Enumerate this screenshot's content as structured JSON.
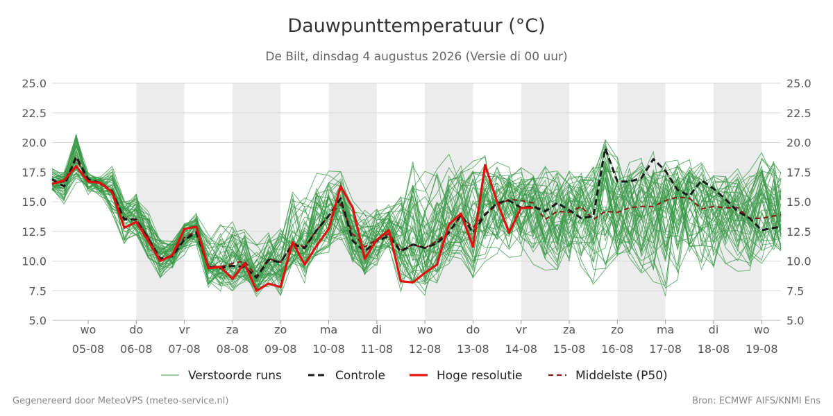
{
  "title": "Dauwpunttemperatuur (°C)",
  "subtitle": "De Bilt, dinsdag  4 augustus 2026 (Versie di 00 uur)",
  "footer": {
    "left": "Gegenereerd door MeteoVPS (meteo-service.nl)",
    "right": "Bron: ECMWF AIFS/KNMI Ens"
  },
  "chart_data": {
    "type": "line",
    "ylim": [
      5.0,
      25.0
    ],
    "yticks": [
      "5.0",
      "7.5",
      "10.0",
      "12.5",
      "15.0",
      "17.5",
      "20.0",
      "22.5",
      "25.0"
    ],
    "grid": true,
    "legend_position": "bottom",
    "x_range_days": [
      -0.75,
      14.4
    ],
    "x_ticks": [
      {
        "day": "wo",
        "date": "05-08"
      },
      {
        "day": "do",
        "date": "06-08"
      },
      {
        "day": "vr",
        "date": "07-08"
      },
      {
        "day": "za",
        "date": "08-08"
      },
      {
        "day": "zo",
        "date": "09-08"
      },
      {
        "day": "ma",
        "date": "10-08"
      },
      {
        "day": "di",
        "date": "11-08"
      },
      {
        "day": "wo",
        "date": "12-08"
      },
      {
        "day": "do",
        "date": "13-08"
      },
      {
        "day": "vr",
        "date": "14-08"
      },
      {
        "day": "za",
        "date": "15-08"
      },
      {
        "day": "zo",
        "date": "16-08"
      },
      {
        "day": "ma",
        "date": "17-08"
      },
      {
        "day": "di",
        "date": "18-08"
      },
      {
        "day": "wo",
        "date": "19-08"
      }
    ],
    "shaded_days": [
      1,
      3,
      5,
      7,
      9,
      11,
      13
    ],
    "series": [
      {
        "name": "Controle",
        "color": "#1a1a1a",
        "style": "dashed",
        "width": 3,
        "x": [
          -0.75,
          -0.5,
          -0.25,
          0,
          0.25,
          0.5,
          0.75,
          1,
          1.25,
          1.5,
          1.75,
          2,
          2.25,
          2.5,
          2.75,
          3,
          3.25,
          3.5,
          3.75,
          4,
          4.25,
          4.5,
          4.75,
          5,
          5.25,
          5.5,
          5.75,
          6,
          6.25,
          6.5,
          6.75,
          7,
          7.25,
          7.5,
          7.75,
          8,
          8.25,
          8.5,
          8.75,
          9,
          9.25,
          9.5,
          9.75,
          10,
          10.25,
          10.5,
          10.75,
          11,
          11.25,
          11.5,
          11.75,
          12,
          12.25,
          12.5,
          12.75,
          13,
          13.25,
          13.5,
          13.75,
          14,
          14.25,
          14.4
        ],
        "y": [
          16.9,
          16.3,
          18.8,
          16.9,
          16.6,
          15.9,
          13.5,
          13.5,
          11.9,
          10.2,
          10.4,
          11.8,
          12.4,
          9.5,
          9.4,
          9.6,
          9.5,
          8.6,
          10.1,
          9.9,
          11.4,
          11.1,
          12.6,
          13.8,
          15.3,
          11.7,
          10.8,
          11.7,
          12.1,
          10.8,
          11.4,
          11.1,
          11.5,
          12.4,
          13.9,
          12.4,
          13.9,
          14.9,
          15.1,
          14.5,
          14.6,
          14.2,
          14.9,
          14.3,
          13.6,
          13.8,
          19.5,
          16.7,
          16.7,
          17.0,
          18.6,
          17.6,
          16.0,
          15.5,
          16.8,
          16.1,
          15.2,
          14.2,
          13.6,
          12.6,
          12.8,
          12.9
        ]
      },
      {
        "name": "Hoge resolutie",
        "color": "#e01010",
        "style": "solid",
        "width": 3.2,
        "x": [
          -0.75,
          -0.5,
          -0.25,
          0,
          0.25,
          0.5,
          0.75,
          1,
          1.25,
          1.5,
          1.75,
          2,
          2.25,
          2.5,
          2.75,
          3,
          3.25,
          3.5,
          3.75,
          4,
          4.25,
          4.5,
          4.75,
          5,
          5.25,
          5.5,
          5.75,
          6,
          6.25,
          6.5,
          6.75,
          7,
          7.25,
          7.5,
          7.75,
          8,
          8.25,
          8.5,
          8.75,
          9,
          9.25
        ],
        "y": [
          16.5,
          16.8,
          18.0,
          16.7,
          16.6,
          15.8,
          12.8,
          13.3,
          11.7,
          10.0,
          10.5,
          12.7,
          12.9,
          9.4,
          9.5,
          8.5,
          9.8,
          7.5,
          8.1,
          7.8,
          11.6,
          9.7,
          11.3,
          12.7,
          16.3,
          14.5,
          10.2,
          11.8,
          12.6,
          8.3,
          8.2,
          9.0,
          9.7,
          13.1,
          14.0,
          11.2,
          18.1,
          15.0,
          12.4,
          14.5,
          14.5
        ]
      },
      {
        "name": "Middelste (P50)",
        "color": "#8b1a1a",
        "style": "dashed",
        "width": 2.2,
        "x": [
          -0.75,
          -0.5,
          -0.25,
          0,
          0.25,
          0.5,
          0.75,
          1,
          1.25,
          1.5,
          1.75,
          2,
          2.25,
          2.5,
          2.75,
          3,
          3.25,
          3.5,
          3.75,
          4,
          4.25,
          4.5,
          4.75,
          5,
          5.25,
          5.5,
          5.75,
          6,
          6.25,
          6.5,
          6.75,
          7,
          7.25,
          7.5,
          7.75,
          8,
          8.25,
          8.5,
          8.75,
          9,
          9.25,
          9.5,
          9.75,
          10,
          10.25,
          10.5,
          10.75,
          11,
          11.25,
          11.5,
          11.75,
          12,
          12.25,
          12.5,
          12.75,
          13,
          13.25,
          13.5,
          13.75,
          14,
          14.25,
          14.4
        ],
        "y": [
          16.5,
          16.7,
          18.6,
          16.8,
          16.5,
          15.9,
          13.6,
          13.5,
          12.0,
          10.1,
          10.5,
          12.0,
          12.5,
          9.6,
          9.5,
          9.8,
          10.0,
          8.7,
          10.2,
          9.9,
          11.5,
          11.2,
          12.6,
          13.8,
          14.8,
          12.3,
          11.2,
          11.8,
          12.3,
          10.9,
          11.4,
          11.1,
          11.7,
          12.5,
          13.8,
          12.8,
          14.0,
          14.7,
          15.2,
          15.1,
          14.9,
          13.5,
          14.2,
          14.1,
          14.6,
          13.5,
          14.2,
          14.1,
          14.5,
          14.6,
          14.6,
          15.1,
          15.4,
          15.3,
          14.4,
          14.6,
          14.5,
          14.5,
          13.6,
          13.6,
          13.8,
          13.9
        ]
      }
    ],
    "ensemble": {
      "name": "Verstoorde runs",
      "color": "#3a9a48",
      "members": 50,
      "spread_low": [
        15.8,
        14.6,
        16.6,
        15.4,
        15.3,
        13.6,
        11.2,
        11.9,
        9.9,
        8.3,
        8.8,
        10.3,
        10.9,
        7.5,
        7.3,
        7.0,
        7.8,
        6.8,
        7.6,
        6.8,
        9.4,
        7.8,
        9.7,
        10.5,
        11.4,
        9.6,
        8.0,
        9.3,
        10.5,
        7.2,
        7.0,
        7.0,
        7.5,
        9.2,
        10.0,
        8.4,
        9.8,
        10.2,
        9.4,
        9.7,
        9.6,
        9.2,
        9.2,
        8.8,
        8.6,
        8.0,
        8.3,
        8.2,
        8.3,
        8.0,
        7.5,
        6.8,
        7.2,
        7.9,
        8.5,
        8.3,
        8.6,
        8.8,
        9.2,
        9.6,
        9.8,
        10.0
      ],
      "spread_high": [
        18.3,
        17.6,
        21.5,
        17.5,
        17.3,
        18.1,
        15.1,
        16.0,
        14.3,
        12.3,
        11.9,
        13.5,
        14.2,
        12.4,
        13.2,
        13.8,
        13.1,
        12.2,
        12.5,
        13.7,
        16.5,
        16.1,
        17.4,
        18.0,
        17.8,
        15.6,
        15.5,
        15.3,
        15.0,
        16.1,
        19.1,
        18.6,
        18.2,
        19.0,
        18.9,
        18.7,
        18.9,
        18.5,
        18.3,
        18.1,
        18.0,
        18.8,
        18.6,
        18.9,
        18.2,
        18.5,
        20.8,
        19.4,
        19.3,
        19.1,
        19.6,
        19.2,
        19.0,
        18.8,
        19.2,
        18.3,
        18.0,
        17.9,
        18.1,
        19.3,
        19.2,
        18.5
      ]
    }
  }
}
